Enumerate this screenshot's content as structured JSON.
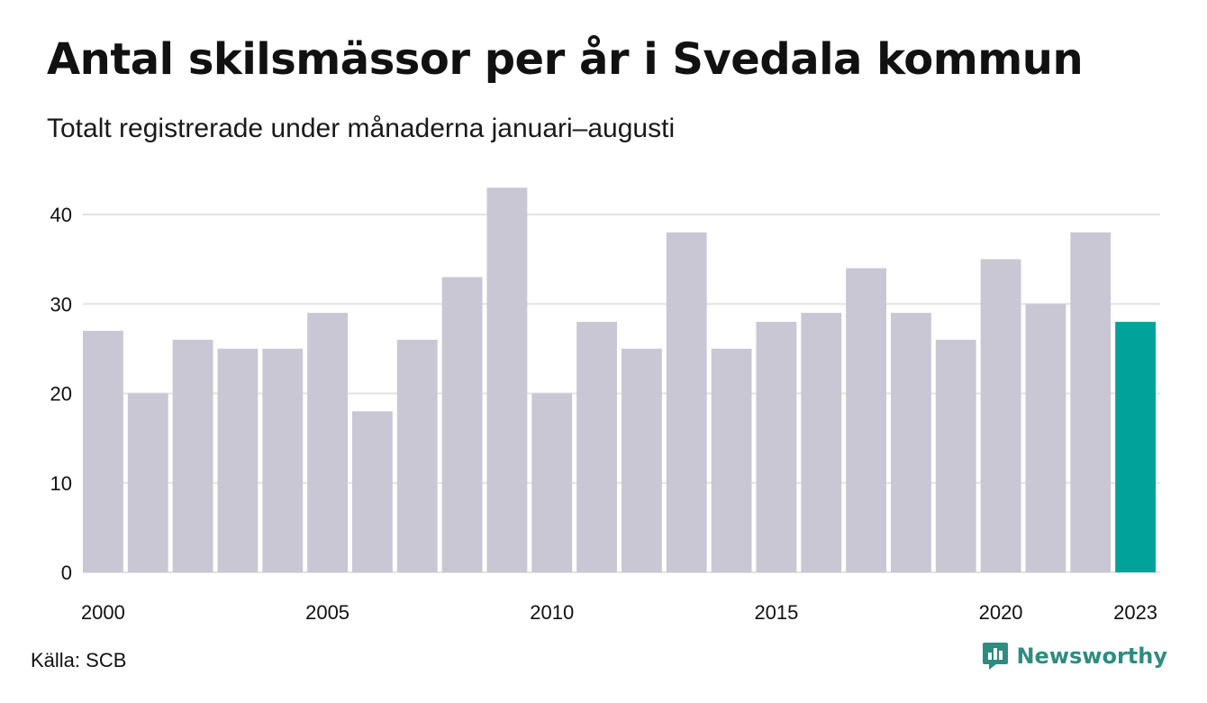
{
  "title": "Antal skilsmässor per år i Svedala kommun",
  "subtitle": "Totalt registrerade under månaderna januari–augusti",
  "source": "Källa: SCB",
  "brand": {
    "name": "Newsworthy",
    "logo_icon": "newsworthy-chart-bubble-icon"
  },
  "colors": {
    "bar": "#c9c7d3",
    "highlight": "#00a29a",
    "grid": "#e3e3e3",
    "brand": "#2e8c80"
  },
  "chart_data": {
    "type": "bar",
    "title": "Antal skilsmässor per år i Svedala kommun",
    "subtitle": "Totalt registrerade under månaderna januari–augusti",
    "categories": [
      "2000",
      "2001",
      "2002",
      "2003",
      "2004",
      "2005",
      "2006",
      "2007",
      "2008",
      "2009",
      "2010",
      "2011",
      "2012",
      "2013",
      "2014",
      "2015",
      "2016",
      "2017",
      "2018",
      "2019",
      "2020",
      "2021",
      "2022",
      "2023"
    ],
    "values": [
      27,
      20,
      26,
      25,
      25,
      29,
      18,
      26,
      33,
      43,
      20,
      28,
      25,
      38,
      25,
      28,
      29,
      34,
      29,
      26,
      35,
      30,
      38,
      28
    ],
    "highlight_category": "2023",
    "x_tick_labels": [
      "2000",
      "2005",
      "2010",
      "2015",
      "2020",
      "2023"
    ],
    "y_ticks": [
      0,
      10,
      20,
      30,
      40
    ],
    "ylim": [
      0,
      43
    ],
    "xlabel": "",
    "ylabel": "",
    "grid": true,
    "legend": "none"
  }
}
